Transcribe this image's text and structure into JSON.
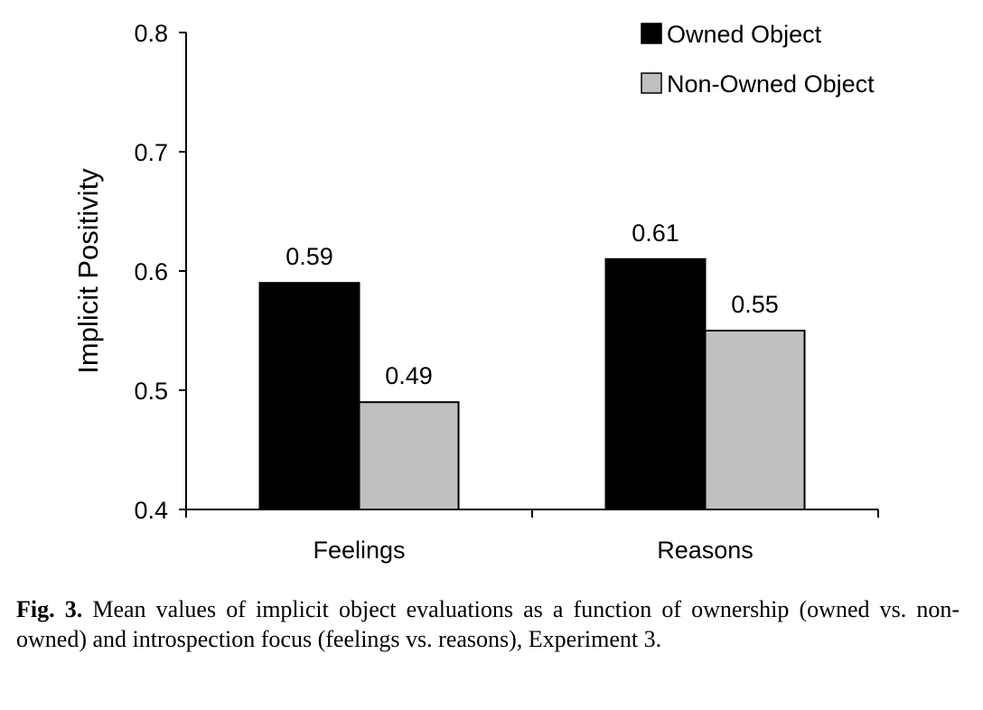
{
  "chart_data": {
    "type": "bar",
    "categories": [
      "Feelings",
      "Reasons"
    ],
    "series": [
      {
        "name": "Owned Object",
        "values": [
          0.59,
          0.61
        ],
        "color": "#000000"
      },
      {
        "name": "Non-Owned Object",
        "values": [
          0.49,
          0.55
        ],
        "color": "#c0c0c0"
      }
    ],
    "data_labels": [
      [
        "0.59",
        "0.61"
      ],
      [
        "0.49",
        "0.55"
      ]
    ],
    "ylabel": "Implicit Positivity",
    "xlabel": "",
    "ylim": [
      0.4,
      0.8
    ],
    "yticks": [
      "0.4",
      "0.5",
      "0.6",
      "0.7",
      "0.8"
    ],
    "grid": false,
    "legend_position": "top-right"
  },
  "caption": {
    "label": "Fig. 3.",
    "text": " Mean values of implicit object evaluations as a function of ownership (owned vs. non-owned) and introspection focus (feelings vs. reasons), Experiment 3."
  }
}
